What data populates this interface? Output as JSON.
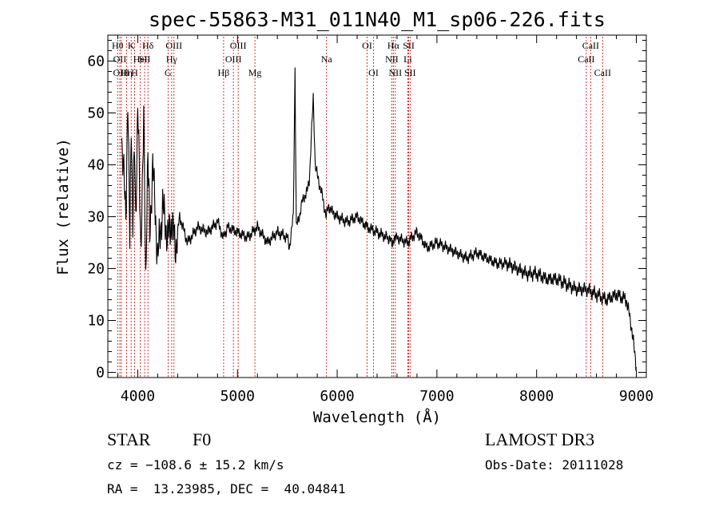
{
  "chart_data": {
    "type": "line",
    "title": "spec-55863-M31_011N40_M1_sp06-226.fits",
    "xlabel": "Wavelength (Å)",
    "ylabel": "Flux (relative)",
    "xlim": [
      3700,
      9100
    ],
    "ylim": [
      -1,
      65
    ],
    "xticks": [
      4000,
      5000,
      6000,
      7000,
      8000,
      9000
    ],
    "yticks": [
      0,
      10,
      20,
      30,
      40,
      50,
      60
    ],
    "series": [
      {
        "name": "spectrum",
        "x": [
          3700,
          3780,
          3840,
          3880,
          3900,
          3920,
          3935,
          3950,
          3968,
          3980,
          4000,
          4030,
          4060,
          4080,
          4102,
          4120,
          4150,
          4200,
          4250,
          4300,
          4340,
          4380,
          4420,
          4500,
          4600,
          4700,
          4800,
          4861,
          4900,
          5000,
          5100,
          5200,
          5300,
          5400,
          5500,
          5520,
          5560,
          5577,
          5590,
          5620,
          5650,
          5700,
          5720,
          5740,
          5760,
          5780,
          5800,
          5850,
          5890,
          5910,
          5950,
          6000,
          6100,
          6200,
          6300,
          6400,
          6500,
          6563,
          6600,
          6700,
          6800,
          6900,
          7000,
          7100,
          7200,
          7300,
          7400,
          7500,
          7600,
          7700,
          7800,
          7900,
          8000,
          8100,
          8200,
          8300,
          8400,
          8500,
          8600,
          8700,
          8800,
          8900,
          8950,
          9000
        ],
        "y": [
          null,
          null,
          45,
          30,
          53,
          25,
          50,
          28,
          46,
          30,
          52,
          24,
          48,
          18,
          45,
          26,
          40,
          22,
          32,
          26,
          29,
          24,
          30,
          25,
          28,
          27,
          29,
          26,
          28,
          27,
          26,
          28,
          25,
          27,
          26,
          24,
          30,
          58,
          28,
          30,
          33,
          35,
          37,
          45,
          53,
          40,
          38,
          34,
          30,
          32,
          31,
          30,
          29,
          30,
          28,
          27,
          26,
          25,
          26,
          25,
          27,
          24,
          25,
          24,
          23,
          22,
          23,
          22,
          21,
          21,
          20,
          19,
          19,
          18,
          18,
          17,
          16,
          16,
          15,
          14,
          15,
          14,
          9,
          1
        ]
      }
    ],
    "lines": [
      {
        "wave": 3798,
        "label": "Hθ",
        "row": 0
      },
      {
        "wave": 3820,
        "label": "OII",
        "row": 1
      },
      {
        "wave": 3835,
        "label": "OIII",
        "row": 2
      },
      {
        "wave": 3889,
        "label": "Hη",
        "row": 2
      },
      {
        "wave": 3934,
        "label": "K",
        "row": 0
      },
      {
        "wave": 3968,
        "label": "H",
        "row": 2
      },
      {
        "wave": 4026,
        "label": "HeI",
        "row": 1
      },
      {
        "wave": 4069,
        "label": "SII",
        "row": 1
      },
      {
        "wave": 4102,
        "label": "Hδ",
        "row": 0
      },
      {
        "wave": 4304,
        "label": "G",
        "row": 2
      },
      {
        "wave": 4340,
        "label": "Hγ",
        "row": 1
      },
      {
        "wave": 4363,
        "label": "OIII",
        "row": 0
      },
      {
        "wave": 4861,
        "label": "Hβ",
        "row": 2
      },
      {
        "wave": 4959,
        "label": "OIII",
        "row": 1
      },
      {
        "wave": 5007,
        "label": "OIII",
        "row": 0
      },
      {
        "wave": 5175,
        "label": "Mg",
        "row": 2
      },
      {
        "wave": 5893,
        "label": "Na",
        "row": 1
      },
      {
        "wave": 6300,
        "label": "OI",
        "row": 0
      },
      {
        "wave": 6364,
        "label": "OI",
        "row": 2
      },
      {
        "wave": 6548,
        "label": "NII",
        "row": 1
      },
      {
        "wave": 6563,
        "label": "Hα",
        "row": 0
      },
      {
        "wave": 6583,
        "label": "NII",
        "row": 2
      },
      {
        "wave": 6708,
        "label": "Li",
        "row": 1
      },
      {
        "wave": 6717,
        "label": "SII",
        "row": 0
      },
      {
        "wave": 6731,
        "label": "SII",
        "row": 2
      },
      {
        "wave": 8498,
        "label": "CaII",
        "row": 1
      },
      {
        "wave": 8542,
        "label": "CaII",
        "row": 0
      },
      {
        "wave": 8662,
        "label": "CaII",
        "row": 2
      }
    ]
  },
  "info": {
    "class": "STAR",
    "subclass": "F0",
    "survey": "LAMOST DR3",
    "cz": "cz = −108.6 ± 15.2 km/s",
    "obs_date": "Obs-Date: 20111028",
    "coords": "RA =  13.23985, DEC =  40.04841"
  }
}
